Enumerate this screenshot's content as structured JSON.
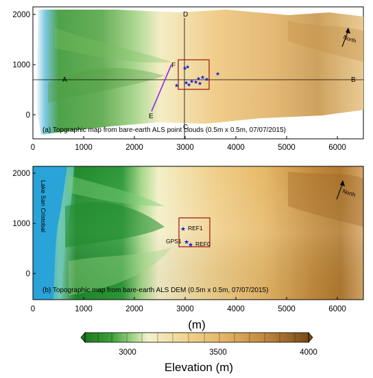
{
  "panel_a": {
    "caption": "(a) Topgraphic map from bare-earth ALS point clouds (0.5m x 0.5m, 07/07/2015)",
    "x_ticks": [
      "0",
      "1000",
      "2000",
      "3000",
      "4000",
      "5000",
      "6000"
    ],
    "y_ticks": [
      "2000",
      "1000",
      "0"
    ],
    "profile_labels": {
      "a": "A",
      "b": "B",
      "c": "C",
      "d": "D",
      "e": "E",
      "f": "F"
    },
    "north_label": "North"
  },
  "panel_b": {
    "caption": "(b) Topographic map from bare-earth ALS DEM (0.5m x 0.5m, 07/07/2015)",
    "x_ticks": [
      "0",
      "1000",
      "2000",
      "3000",
      "4000",
      "5000",
      "6000"
    ],
    "y_ticks": [
      "2000",
      "1000",
      "0"
    ],
    "lake_label": "Lake San Cristobal",
    "markers": {
      "ref1": "REF1",
      "gps1": "GPS1",
      "ref0": "REF0"
    },
    "north_label": "North"
  },
  "x_axis_unit": "(m)",
  "colorbar": {
    "ticks": [
      "3000",
      "3500",
      "4000"
    ],
    "title": "Elevation (m)"
  },
  "colors": {
    "lake": "#2aa3d8",
    "box": "#a02018",
    "marker": "#1a1ad0",
    "profile_ef": "#8a2be2"
  }
}
